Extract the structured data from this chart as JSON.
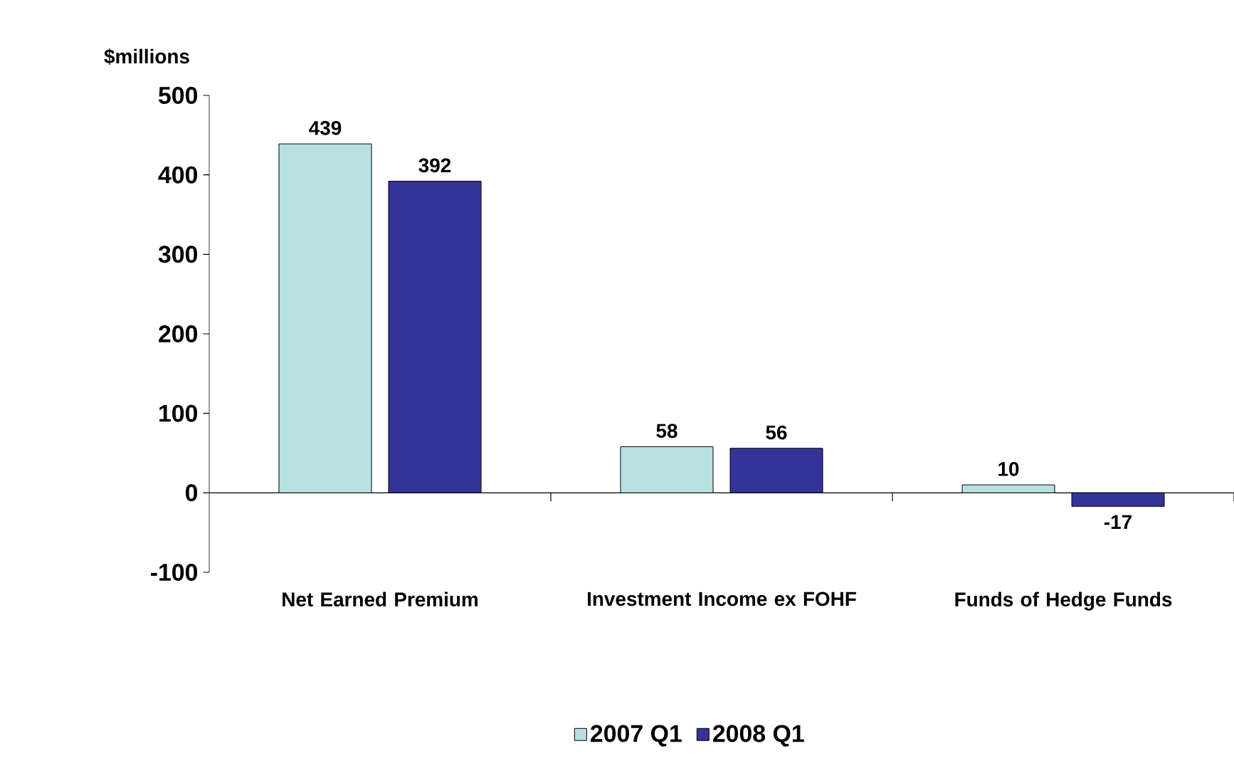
{
  "chart_data": {
    "type": "bar",
    "ylabel": "$millions",
    "categories": [
      "Net Earned Premium",
      "Investment Income ex FOHF",
      "Funds of Hedge Funds"
    ],
    "series": [
      {
        "name": "2007 Q1",
        "color": "#b8e0e0",
        "values": [
          439,
          58,
          10
        ]
      },
      {
        "name": "2008 Q1",
        "color": "#333399",
        "values": [
          392,
          56,
          -17
        ]
      }
    ],
    "ylim": [
      -100,
      500
    ],
    "yticks": [
      -100,
      0,
      100,
      200,
      300,
      400,
      500
    ],
    "data_labels": true,
    "legend": "bottom"
  }
}
